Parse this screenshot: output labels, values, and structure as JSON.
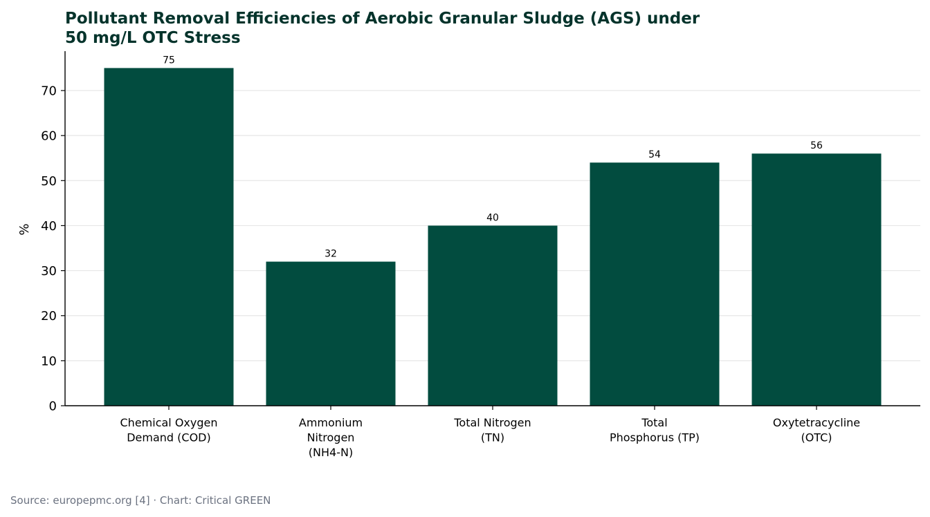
{
  "colors": {
    "bar": "#024c3f",
    "title": "#04332b",
    "source": "#6b7280",
    "grid": "#e6e6e6",
    "axis": "#000000"
  },
  "source": "Source: europepmc.org [4] · Chart: Critical GREEN",
  "chart_data": {
    "type": "bar",
    "title_lines": [
      "Pollutant Removal Efficiencies of Aerobic Granular Sludge (AGS) under",
      "50 mg/L OTC Stress"
    ],
    "xlabel": "",
    "ylabel": "%",
    "categories": [
      "Chemical Oxygen Demand (COD)",
      "Ammonium Nitrogen (NH4-N)",
      "Total Nitrogen (TN)",
      "Total Phosphorus (TP)",
      "Oxytetracycline (OTC)"
    ],
    "category_lines": [
      [
        "Chemical Oxygen",
        "Demand (COD)"
      ],
      [
        "Ammonium",
        "Nitrogen",
        "(NH4-N)"
      ],
      [
        "Total Nitrogen",
        "(TN)"
      ],
      [
        "Total",
        "Phosphorus (TP)"
      ],
      [
        "Oxytetracycline",
        "(OTC)"
      ]
    ],
    "values": [
      75,
      32,
      40,
      54,
      56
    ],
    "data_labels": [
      "75",
      "32",
      "40",
      "54",
      "56"
    ],
    "yticks": [
      0,
      10,
      20,
      30,
      40,
      50,
      60,
      70
    ],
    "ylim": [
      0,
      78.75
    ],
    "grid": true,
    "legend": "none"
  }
}
